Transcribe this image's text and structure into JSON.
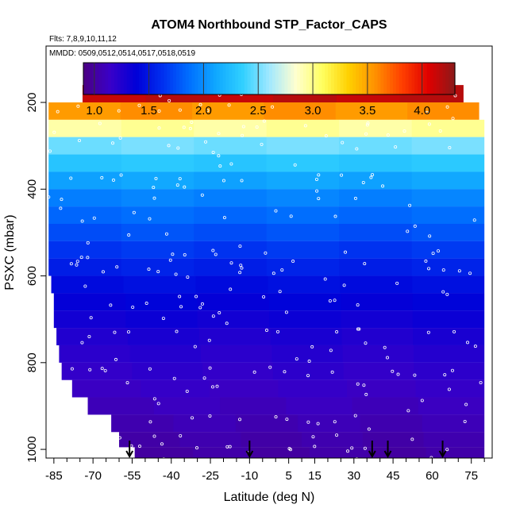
{
  "chart_data": {
    "type": "heatmap",
    "title": "ATOM4 Northbound STP_Factor_CAPS",
    "subtitle_flights": "Flts: 7,8,9,10,11,12",
    "subtitle_dates": "MMDD: 0509,0512,0514,0517,0518,0519",
    "xlabel": "Latitude (deg N)",
    "ylabel": "PSXC (mbar)",
    "xlim": [
      -88,
      83
    ],
    "ylim": [
      1020,
      70
    ],
    "y_reversed": true,
    "x_ticks": [
      -85,
      -70,
      -55,
      -40,
      -25,
      -10,
      5,
      15,
      30,
      45,
      60,
      75
    ],
    "x_minor_ticks": [
      -80,
      -75,
      -65,
      -60,
      -50,
      -45,
      -35,
      -30,
      -20,
      -15,
      -5,
      0,
      10,
      20,
      25,
      35,
      40,
      50,
      55,
      65,
      70,
      80
    ],
    "y_ticks": [
      200,
      400,
      600,
      800,
      1000
    ],
    "colorbar": {
      "range": [
        0.9,
        4.3
      ],
      "ticks": [
        1.0,
        1.5,
        2.0,
        2.5,
        3.0,
        3.5,
        4.0
      ]
    },
    "pressure_levels": [
      {
        "p": 180,
        "value": 4.15,
        "lat_min": -74,
        "lat_max": 72
      },
      {
        "p": 220,
        "value": 3.55,
        "lat_min": -87,
        "lat_max": 78
      },
      {
        "p": 260,
        "value": 2.95,
        "lat_min": -87,
        "lat_max": 80
      },
      {
        "p": 300,
        "value": 2.5,
        "lat_min": -87,
        "lat_max": 80
      },
      {
        "p": 340,
        "value": 2.3,
        "lat_min": -87,
        "lat_max": 80
      },
      {
        "p": 380,
        "value": 2.1,
        "lat_min": -87,
        "lat_max": 80
      },
      {
        "p": 420,
        "value": 1.95,
        "lat_min": -87,
        "lat_max": 80
      },
      {
        "p": 460,
        "value": 1.85,
        "lat_min": -87,
        "lat_max": 80
      },
      {
        "p": 500,
        "value": 1.75,
        "lat_min": -87,
        "lat_max": 80
      },
      {
        "p": 540,
        "value": 1.65,
        "lat_min": -87,
        "lat_max": 80
      },
      {
        "p": 580,
        "value": 1.55,
        "lat_min": -87,
        "lat_max": 80
      },
      {
        "p": 620,
        "value": 1.45,
        "lat_min": -86,
        "lat_max": 80
      },
      {
        "p": 660,
        "value": 1.38,
        "lat_min": -85,
        "lat_max": 80
      },
      {
        "p": 700,
        "value": 1.32,
        "lat_min": -85,
        "lat_max": 80
      },
      {
        "p": 740,
        "value": 1.26,
        "lat_min": -84,
        "lat_max": 80
      },
      {
        "p": 780,
        "value": 1.22,
        "lat_min": -83,
        "lat_max": 80
      },
      {
        "p": 820,
        "value": 1.18,
        "lat_min": -82,
        "lat_max": 80
      },
      {
        "p": 860,
        "value": 1.14,
        "lat_min": -78,
        "lat_max": 80
      },
      {
        "p": 900,
        "value": 1.1,
        "lat_min": -72,
        "lat_max": 80
      },
      {
        "p": 940,
        "value": 1.07,
        "lat_min": -63,
        "lat_max": 80
      },
      {
        "p": 980,
        "value": 1.04,
        "lat_min": -60,
        "lat_max": 80
      },
      {
        "p": 1010,
        "value": 1.02,
        "lat_min": -54,
        "lat_max": 80
      }
    ],
    "arrows_lat": [
      -56,
      -10,
      37,
      43,
      64
    ]
  },
  "colors": {
    "background": "#ffffff",
    "axis": "#000000",
    "colormap": [
      "#4b0082",
      "#3a00c8",
      "#0000d8",
      "#0030f0",
      "#0070ff",
      "#10a8ff",
      "#30d0ff",
      "#a0e8ff",
      "#ffffd0",
      "#ffff60",
      "#ffd000",
      "#ff9000",
      "#ff4000",
      "#e00000",
      "#8b1a1a"
    ]
  }
}
